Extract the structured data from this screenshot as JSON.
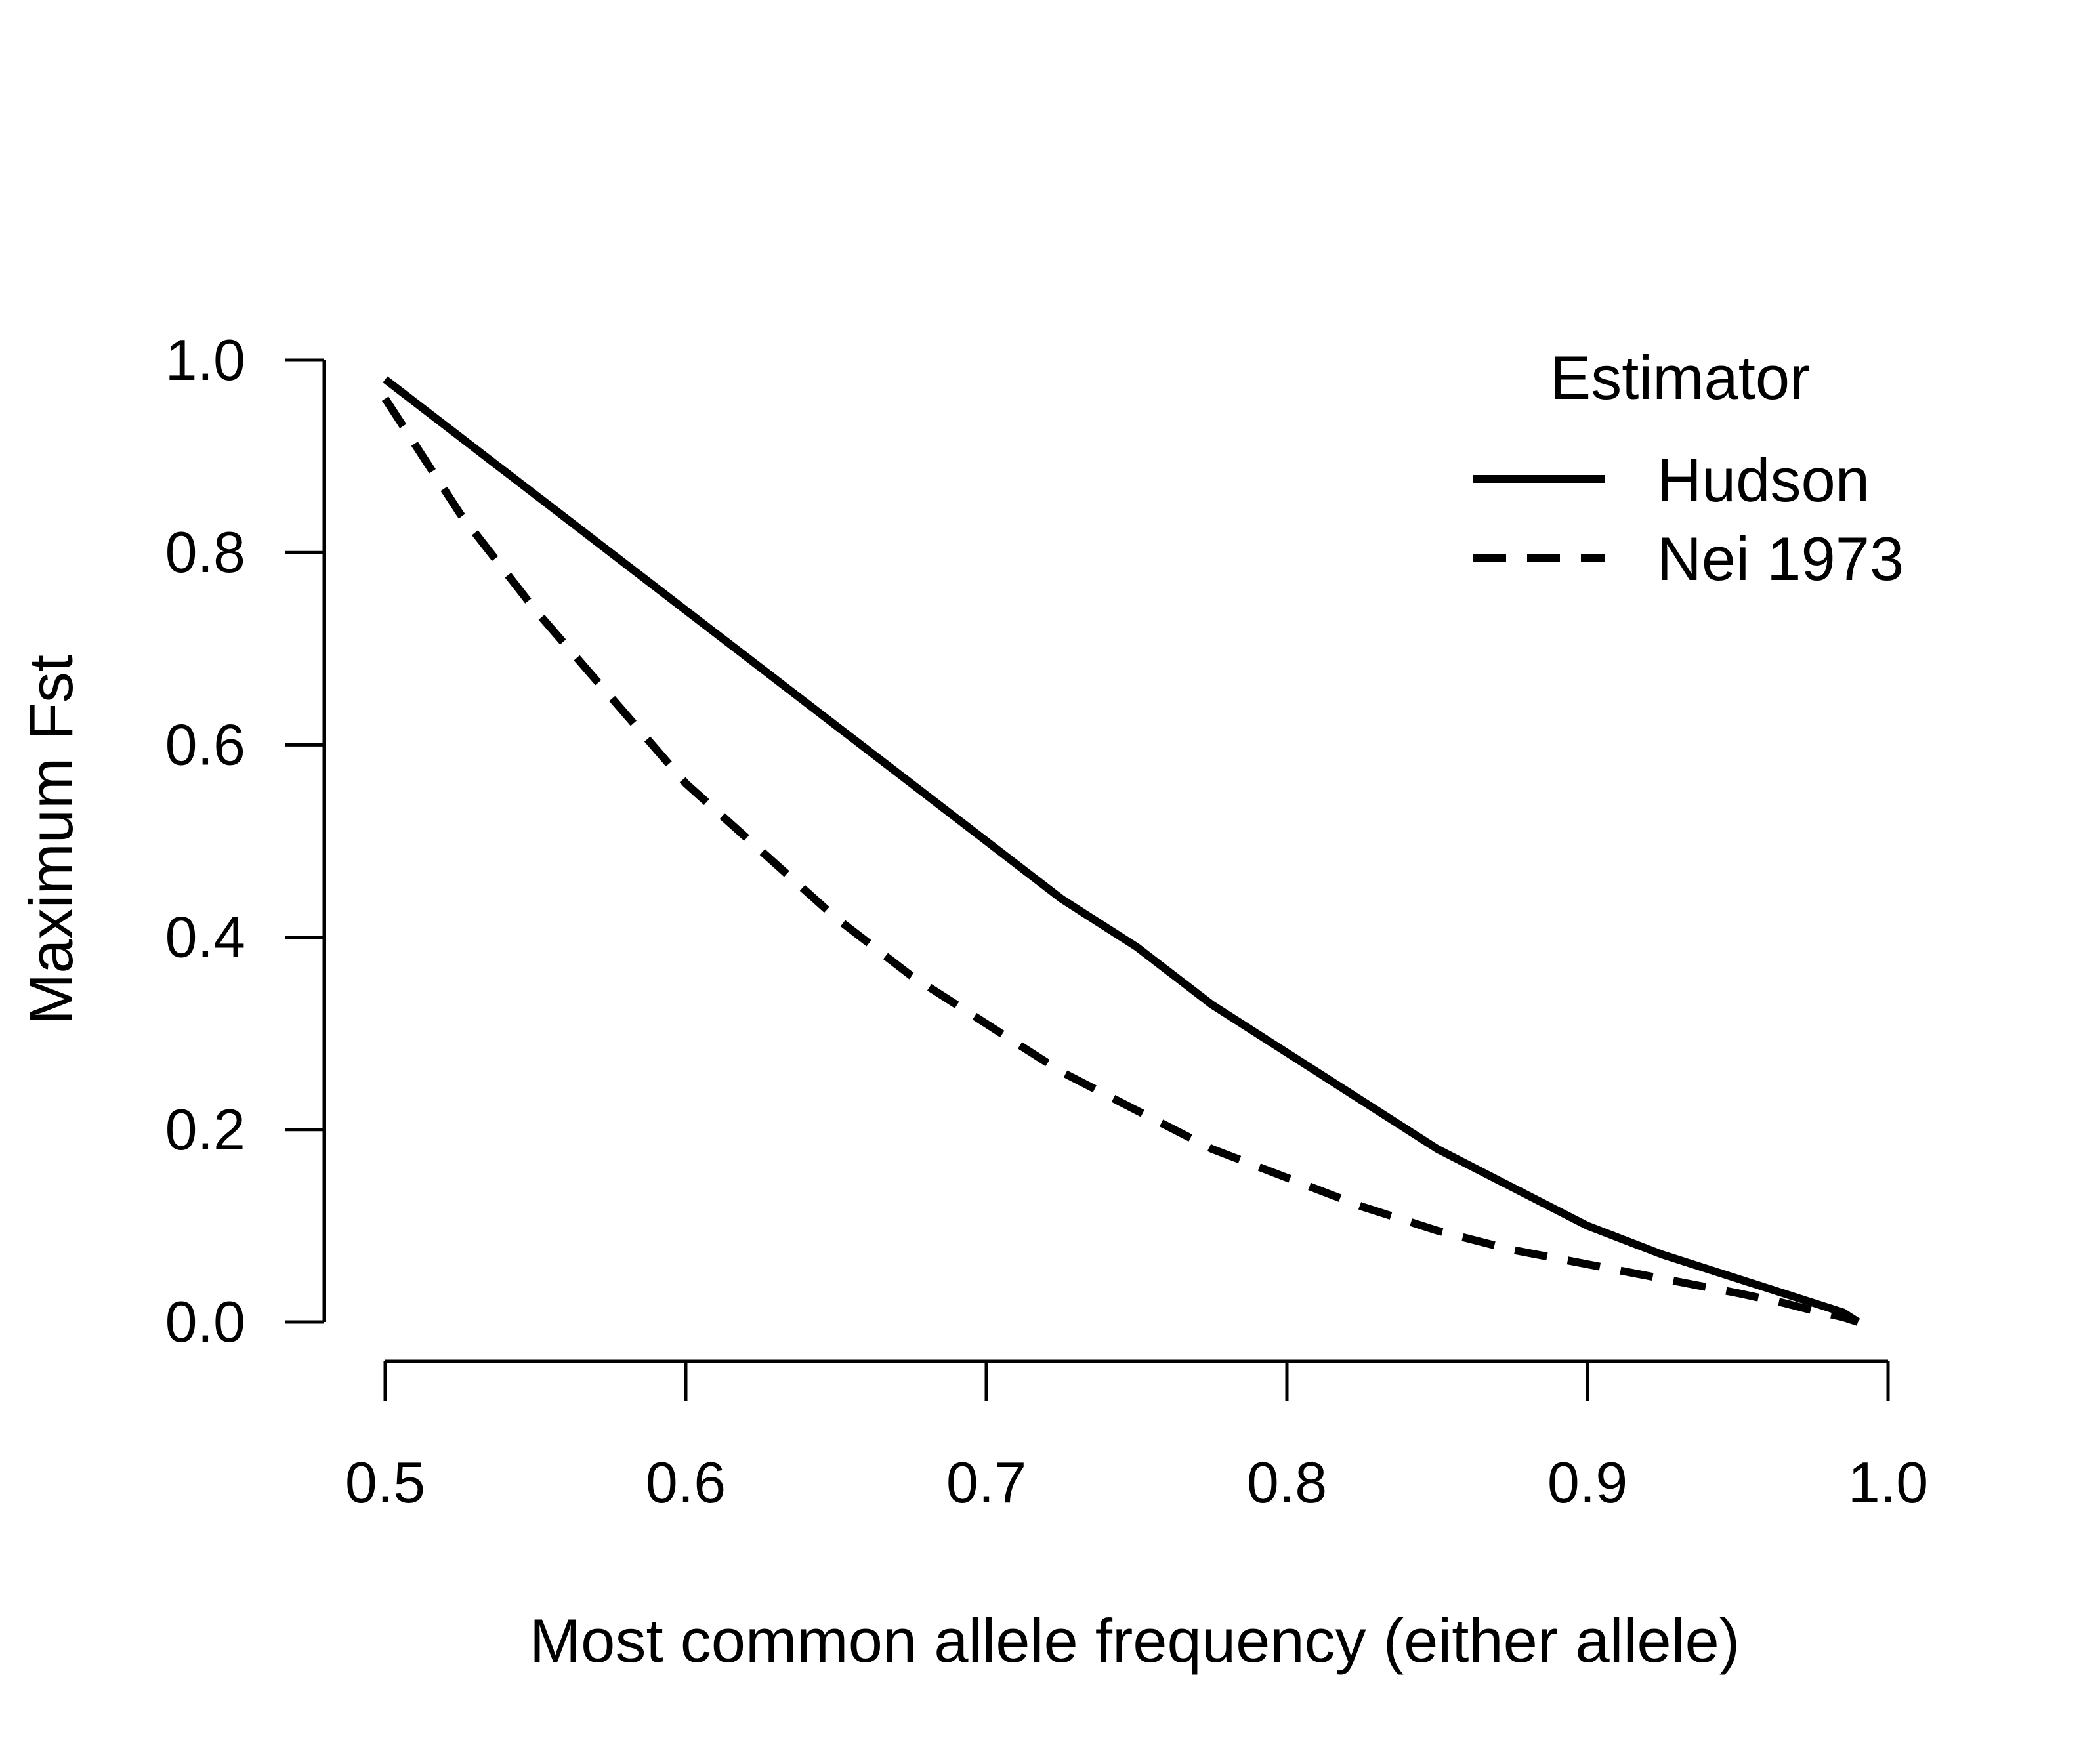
{
  "chart_data": {
    "type": "line",
    "title": "",
    "xlabel": "Most common allele frequency (either allele)",
    "ylabel": "Maximum Fst",
    "xlim": [
      0.5,
      1.0
    ],
    "ylim": [
      0.0,
      1.0
    ],
    "x_ticks": [
      "0.5",
      "0.6",
      "0.7",
      "0.8",
      "0.9",
      "1.0"
    ],
    "y_ticks": [
      "0.0",
      "0.2",
      "0.4",
      "0.6",
      "0.8",
      "1.0"
    ],
    "grid": false,
    "legend": {
      "title": "Estimator",
      "position": "top-right"
    },
    "x": [
      0.5,
      0.525,
      0.55,
      0.575,
      0.6,
      0.625,
      0.65,
      0.675,
      0.7,
      0.725,
      0.75,
      0.775,
      0.8,
      0.825,
      0.85,
      0.875,
      0.9,
      0.925,
      0.95,
      0.965,
      0.975,
      0.985,
      0.99
    ],
    "series": [
      {
        "name": "Hudson",
        "line_style": "solid",
        "color": "#000000",
        "values": [
          0.98,
          0.92,
          0.86,
          0.8,
          0.74,
          0.68,
          0.62,
          0.56,
          0.5,
          0.44,
          0.39,
          0.33,
          0.28,
          0.23,
          0.18,
          0.14,
          0.1,
          0.07,
          0.045,
          0.03,
          0.02,
          0.01,
          0.0
        ]
      },
      {
        "name": "Nei 1973",
        "line_style": "dashed",
        "color": "#000000",
        "values": [
          0.96,
          0.84,
          0.74,
          0.65,
          0.56,
          0.49,
          0.42,
          0.36,
          0.31,
          0.26,
          0.22,
          0.18,
          0.15,
          0.12,
          0.095,
          0.075,
          0.06,
          0.045,
          0.03,
          0.02,
          0.012,
          0.005,
          0.0
        ]
      }
    ]
  }
}
